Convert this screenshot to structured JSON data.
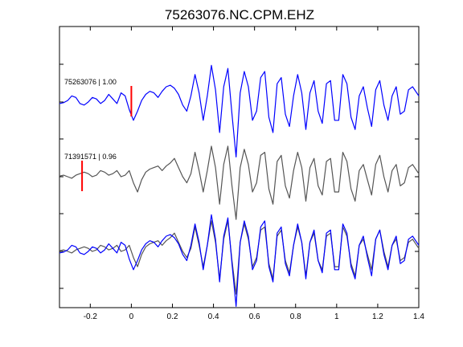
{
  "chart_data": {
    "type": "line",
    "title": "75263076.NC.CPM.EHZ",
    "xlabel": "",
    "ylabel": "",
    "xlim": [
      -0.35,
      1.4
    ],
    "x_ticks": [
      "-0.2",
      "0",
      "0.2",
      "0.4",
      "0.6",
      "0.8",
      "1",
      "1.2",
      "1.4"
    ],
    "x_tick_values": [
      -0.2,
      0,
      0.2,
      0.4,
      0.6,
      0.8,
      1.0,
      1.2,
      1.4
    ],
    "grid": false,
    "legend": "none",
    "colors": {
      "primary": "#0000ff",
      "secondary": "#555555",
      "pick": "#ff0000"
    },
    "traces": [
      {
        "label": "75263076 | 1.00",
        "color": "#0000ff",
        "pick_time": 0.0,
        "x": [
          -0.35,
          -0.33,
          -0.31,
          -0.29,
          -0.27,
          -0.25,
          -0.23,
          -0.21,
          -0.19,
          -0.17,
          -0.15,
          -0.13,
          -0.11,
          -0.09,
          -0.07,
          -0.05,
          -0.03,
          -0.01,
          0.01,
          0.03,
          0.05,
          0.07,
          0.09,
          0.11,
          0.13,
          0.15,
          0.17,
          0.19,
          0.21,
          0.23,
          0.25,
          0.27,
          0.29,
          0.31,
          0.33,
          0.35,
          0.37,
          0.39,
          0.41,
          0.43,
          0.45,
          0.47,
          0.49,
          0.51,
          0.53,
          0.55,
          0.57,
          0.59,
          0.61,
          0.63,
          0.65,
          0.67,
          0.69,
          0.71,
          0.73,
          0.75,
          0.77,
          0.79,
          0.81,
          0.83,
          0.85,
          0.87,
          0.89,
          0.91,
          0.93,
          0.95,
          0.97,
          0.99,
          1.01,
          1.03,
          1.05,
          1.07,
          1.09,
          1.11,
          1.13,
          1.15,
          1.17,
          1.19,
          1.21,
          1.23,
          1.25,
          1.27,
          1.29,
          1.31,
          1.33,
          1.35,
          1.37,
          1.39,
          1.4
        ],
        "y": [
          -0.05,
          -0.02,
          0.05,
          0.2,
          0.15,
          -0.05,
          -0.1,
          0.0,
          0.15,
          0.1,
          -0.05,
          0.05,
          0.25,
          0.1,
          -0.05,
          0.3,
          0.2,
          -0.25,
          -0.6,
          -0.3,
          0.05,
          0.25,
          0.35,
          0.3,
          0.15,
          0.35,
          0.5,
          0.55,
          0.45,
          0.25,
          -0.1,
          -0.3,
          0.2,
          0.9,
          0.3,
          -0.6,
          0.2,
          1.2,
          0.4,
          -1.0,
          0.5,
          1.1,
          -0.4,
          -1.8,
          0.3,
          1.0,
          0.5,
          -0.6,
          -0.3,
          0.8,
          1.0,
          -0.5,
          -1.0,
          0.6,
          0.8,
          -0.4,
          -0.8,
          0.2,
          0.9,
          0.3,
          -0.9,
          0.3,
          0.7,
          -0.3,
          -0.7,
          0.6,
          0.7,
          -0.6,
          -0.6,
          0.9,
          0.6,
          -0.5,
          -0.9,
          0.2,
          0.5,
          -0.2,
          -0.8,
          0.4,
          0.7,
          -0.1,
          -0.6,
          0.2,
          0.5,
          -0.4,
          -0.3,
          0.4,
          0.5,
          0.3,
          0.2
        ]
      },
      {
        "label": "71391571 | 0.96",
        "color": "#555555",
        "pick_time": -0.24,
        "x": [
          -0.35,
          -0.33,
          -0.31,
          -0.29,
          -0.27,
          -0.25,
          -0.23,
          -0.21,
          -0.19,
          -0.17,
          -0.15,
          -0.13,
          -0.11,
          -0.09,
          -0.07,
          -0.05,
          -0.03,
          -0.01,
          0.01,
          0.03,
          0.05,
          0.07,
          0.09,
          0.11,
          0.13,
          0.15,
          0.17,
          0.19,
          0.21,
          0.23,
          0.25,
          0.27,
          0.29,
          0.31,
          0.33,
          0.35,
          0.37,
          0.39,
          0.41,
          0.43,
          0.45,
          0.47,
          0.49,
          0.51,
          0.53,
          0.55,
          0.57,
          0.59,
          0.61,
          0.63,
          0.65,
          0.67,
          0.69,
          0.71,
          0.73,
          0.75,
          0.77,
          0.79,
          0.81,
          0.83,
          0.85,
          0.87,
          0.89,
          0.91,
          0.93,
          0.95,
          0.97,
          0.99,
          1.01,
          1.03,
          1.05,
          1.07,
          1.09,
          1.11,
          1.13,
          1.15,
          1.17,
          1.19,
          1.21,
          1.23,
          1.25,
          1.27,
          1.29,
          1.31,
          1.33,
          1.35,
          1.37,
          1.39,
          1.4
        ],
        "y": [
          0.02,
          0.05,
          0.0,
          -0.05,
          0.05,
          0.1,
          0.15,
          0.1,
          0.0,
          0.05,
          0.2,
          0.15,
          0.05,
          0.1,
          0.2,
          0.0,
          0.05,
          0.2,
          -0.2,
          -0.5,
          -0.1,
          0.15,
          0.25,
          0.3,
          0.35,
          0.2,
          0.35,
          0.45,
          0.6,
          0.3,
          0.0,
          -0.2,
          0.1,
          0.8,
          0.2,
          -0.5,
          0.2,
          1.0,
          0.3,
          -0.9,
          0.4,
          1.0,
          -0.3,
          -1.4,
          0.3,
          0.9,
          0.4,
          -0.5,
          -0.2,
          0.7,
          0.8,
          -0.4,
          -0.9,
          0.5,
          0.7,
          -0.3,
          -0.7,
          0.2,
          0.8,
          0.3,
          -0.8,
          0.3,
          0.6,
          -0.3,
          -0.6,
          0.5,
          0.6,
          -0.5,
          -0.5,
          0.8,
          0.5,
          -0.4,
          -0.8,
          0.2,
          0.4,
          -0.1,
          -0.6,
          0.4,
          0.7,
          0.0,
          -0.5,
          0.2,
          0.4,
          -0.3,
          -0.2,
          0.3,
          0.4,
          0.2,
          0.1
        ]
      }
    ],
    "overlay": {
      "traces": [
        0,
        1
      ],
      "shift": 0.0
    }
  }
}
